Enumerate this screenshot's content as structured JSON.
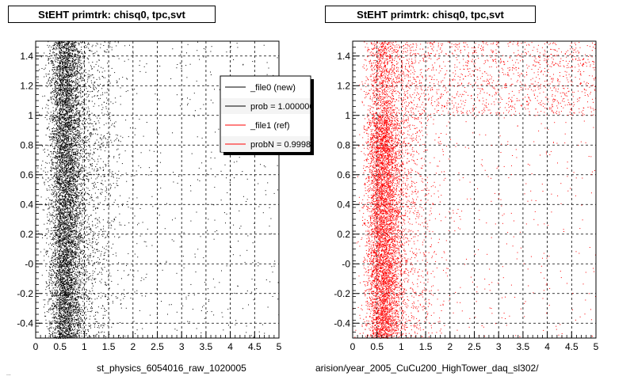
{
  "chart_data": [
    {
      "type": "scatter",
      "title": "StEHT primtrk: chisq0, tpc,svt",
      "xlabel": "st_physics_6054016_raw_1020005",
      "ylabel": "",
      "xlim": [
        0,
        5
      ],
      "ylim": [
        -0.5,
        1.5
      ],
      "x_ticks": [
        "0",
        "0.5",
        "1",
        "1.5",
        "2",
        "2.5",
        "3",
        "3.5",
        "4",
        "4.5",
        "5"
      ],
      "y_ticks": [
        "-0.4",
        "-0.2",
        "-0",
        "0.2",
        "0.4",
        "0.6",
        "0.8",
        "1",
        "1.2",
        "1.4"
      ],
      "grid": true,
      "series": [
        {
          "name": "_file0 (new)",
          "color": "#000000",
          "distribution": "dense band x 0.2-1.0 peak near 0.6, sparse tail to x=5"
        }
      ],
      "legend": {
        "placement": "top-right",
        "entries": [
          {
            "label": "_file0 (new)",
            "color": "#000000"
          },
          {
            "label": "prob = 1.000000",
            "color": "#000000"
          },
          {
            "label": "_file1 (ref)",
            "color": "#ff0000"
          },
          {
            "label": "probN = 0.999810",
            "color": "#ff0000"
          }
        ]
      }
    },
    {
      "type": "scatter",
      "title": "StEHT primtrk: chisq0, tpc,svt",
      "xlabel": "arision/year_2005_CuCu200_HighTower_daq_sl302/",
      "ylabel": "",
      "xlim": [
        0,
        5
      ],
      "ylim": [
        -0.5,
        1.5
      ],
      "x_ticks": [
        "0",
        "0.5",
        "1",
        "1.5",
        "2",
        "2.5",
        "3",
        "3.5",
        "4",
        "4.5",
        "5"
      ],
      "y_ticks": [
        "-0.4",
        "-0.2",
        "-0",
        "0.2",
        "0.4",
        "0.6",
        "0.8",
        "1",
        "1.2",
        "1.4"
      ],
      "grid": true,
      "series": [
        {
          "name": "_file1 (ref)",
          "color": "#ff0000",
          "distribution": "dense band x 0.2-1.0 peak near 0.6, sparse tail to x=5"
        }
      ]
    }
  ],
  "footer": "..."
}
